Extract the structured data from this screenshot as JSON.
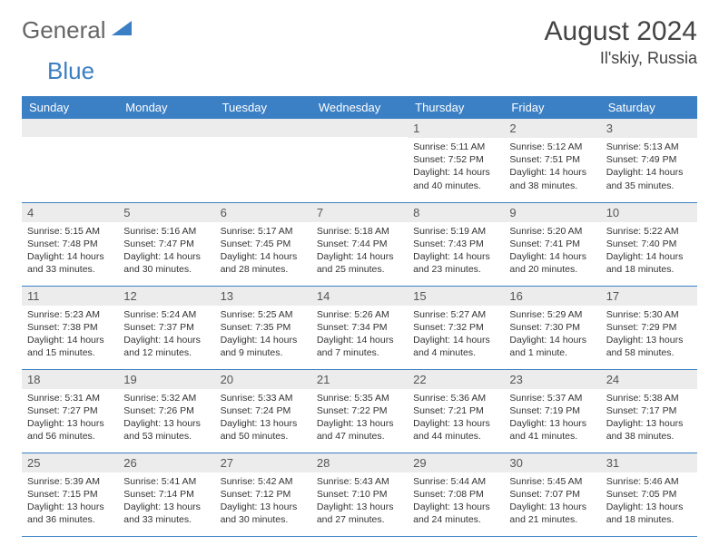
{
  "logo": {
    "word1": "General",
    "word2": "Blue",
    "color1": "#666666",
    "color2": "#3b7fc4"
  },
  "title": "August 2024",
  "location": "Il'skiy, Russia",
  "colors": {
    "header_bg": "#3b7fc4",
    "header_fg": "#ffffff",
    "daynum_bg": "#ececec",
    "border": "#3b7fc4",
    "text": "#333333"
  },
  "typography": {
    "title_fontsize": 30,
    "location_fontsize": 18,
    "header_fontsize": 13,
    "body_fontsize": 10.5
  },
  "layout": {
    "columns": 7,
    "rows": 5,
    "first_weekday_index": 4
  },
  "weekdays": [
    "Sunday",
    "Monday",
    "Tuesday",
    "Wednesday",
    "Thursday",
    "Friday",
    "Saturday"
  ],
  "days": [
    {
      "n": 1,
      "sunrise": "5:11 AM",
      "sunset": "7:52 PM",
      "daylight": "14 hours and 40 minutes."
    },
    {
      "n": 2,
      "sunrise": "5:12 AM",
      "sunset": "7:51 PM",
      "daylight": "14 hours and 38 minutes."
    },
    {
      "n": 3,
      "sunrise": "5:13 AM",
      "sunset": "7:49 PM",
      "daylight": "14 hours and 35 minutes."
    },
    {
      "n": 4,
      "sunrise": "5:15 AM",
      "sunset": "7:48 PM",
      "daylight": "14 hours and 33 minutes."
    },
    {
      "n": 5,
      "sunrise": "5:16 AM",
      "sunset": "7:47 PM",
      "daylight": "14 hours and 30 minutes."
    },
    {
      "n": 6,
      "sunrise": "5:17 AM",
      "sunset": "7:45 PM",
      "daylight": "14 hours and 28 minutes."
    },
    {
      "n": 7,
      "sunrise": "5:18 AM",
      "sunset": "7:44 PM",
      "daylight": "14 hours and 25 minutes."
    },
    {
      "n": 8,
      "sunrise": "5:19 AM",
      "sunset": "7:43 PM",
      "daylight": "14 hours and 23 minutes."
    },
    {
      "n": 9,
      "sunrise": "5:20 AM",
      "sunset": "7:41 PM",
      "daylight": "14 hours and 20 minutes."
    },
    {
      "n": 10,
      "sunrise": "5:22 AM",
      "sunset": "7:40 PM",
      "daylight": "14 hours and 18 minutes."
    },
    {
      "n": 11,
      "sunrise": "5:23 AM",
      "sunset": "7:38 PM",
      "daylight": "14 hours and 15 minutes."
    },
    {
      "n": 12,
      "sunrise": "5:24 AM",
      "sunset": "7:37 PM",
      "daylight": "14 hours and 12 minutes."
    },
    {
      "n": 13,
      "sunrise": "5:25 AM",
      "sunset": "7:35 PM",
      "daylight": "14 hours and 9 minutes."
    },
    {
      "n": 14,
      "sunrise": "5:26 AM",
      "sunset": "7:34 PM",
      "daylight": "14 hours and 7 minutes."
    },
    {
      "n": 15,
      "sunrise": "5:27 AM",
      "sunset": "7:32 PM",
      "daylight": "14 hours and 4 minutes."
    },
    {
      "n": 16,
      "sunrise": "5:29 AM",
      "sunset": "7:30 PM",
      "daylight": "14 hours and 1 minute."
    },
    {
      "n": 17,
      "sunrise": "5:30 AM",
      "sunset": "7:29 PM",
      "daylight": "13 hours and 58 minutes."
    },
    {
      "n": 18,
      "sunrise": "5:31 AM",
      "sunset": "7:27 PM",
      "daylight": "13 hours and 56 minutes."
    },
    {
      "n": 19,
      "sunrise": "5:32 AM",
      "sunset": "7:26 PM",
      "daylight": "13 hours and 53 minutes."
    },
    {
      "n": 20,
      "sunrise": "5:33 AM",
      "sunset": "7:24 PM",
      "daylight": "13 hours and 50 minutes."
    },
    {
      "n": 21,
      "sunrise": "5:35 AM",
      "sunset": "7:22 PM",
      "daylight": "13 hours and 47 minutes."
    },
    {
      "n": 22,
      "sunrise": "5:36 AM",
      "sunset": "7:21 PM",
      "daylight": "13 hours and 44 minutes."
    },
    {
      "n": 23,
      "sunrise": "5:37 AM",
      "sunset": "7:19 PM",
      "daylight": "13 hours and 41 minutes."
    },
    {
      "n": 24,
      "sunrise": "5:38 AM",
      "sunset": "7:17 PM",
      "daylight": "13 hours and 38 minutes."
    },
    {
      "n": 25,
      "sunrise": "5:39 AM",
      "sunset": "7:15 PM",
      "daylight": "13 hours and 36 minutes."
    },
    {
      "n": 26,
      "sunrise": "5:41 AM",
      "sunset": "7:14 PM",
      "daylight": "13 hours and 33 minutes."
    },
    {
      "n": 27,
      "sunrise": "5:42 AM",
      "sunset": "7:12 PM",
      "daylight": "13 hours and 30 minutes."
    },
    {
      "n": 28,
      "sunrise": "5:43 AM",
      "sunset": "7:10 PM",
      "daylight": "13 hours and 27 minutes."
    },
    {
      "n": 29,
      "sunrise": "5:44 AM",
      "sunset": "7:08 PM",
      "daylight": "13 hours and 24 minutes."
    },
    {
      "n": 30,
      "sunrise": "5:45 AM",
      "sunset": "7:07 PM",
      "daylight": "13 hours and 21 minutes."
    },
    {
      "n": 31,
      "sunrise": "5:46 AM",
      "sunset": "7:05 PM",
      "daylight": "13 hours and 18 minutes."
    }
  ],
  "labels": {
    "sunrise": "Sunrise:",
    "sunset": "Sunset:",
    "daylight": "Daylight:"
  }
}
